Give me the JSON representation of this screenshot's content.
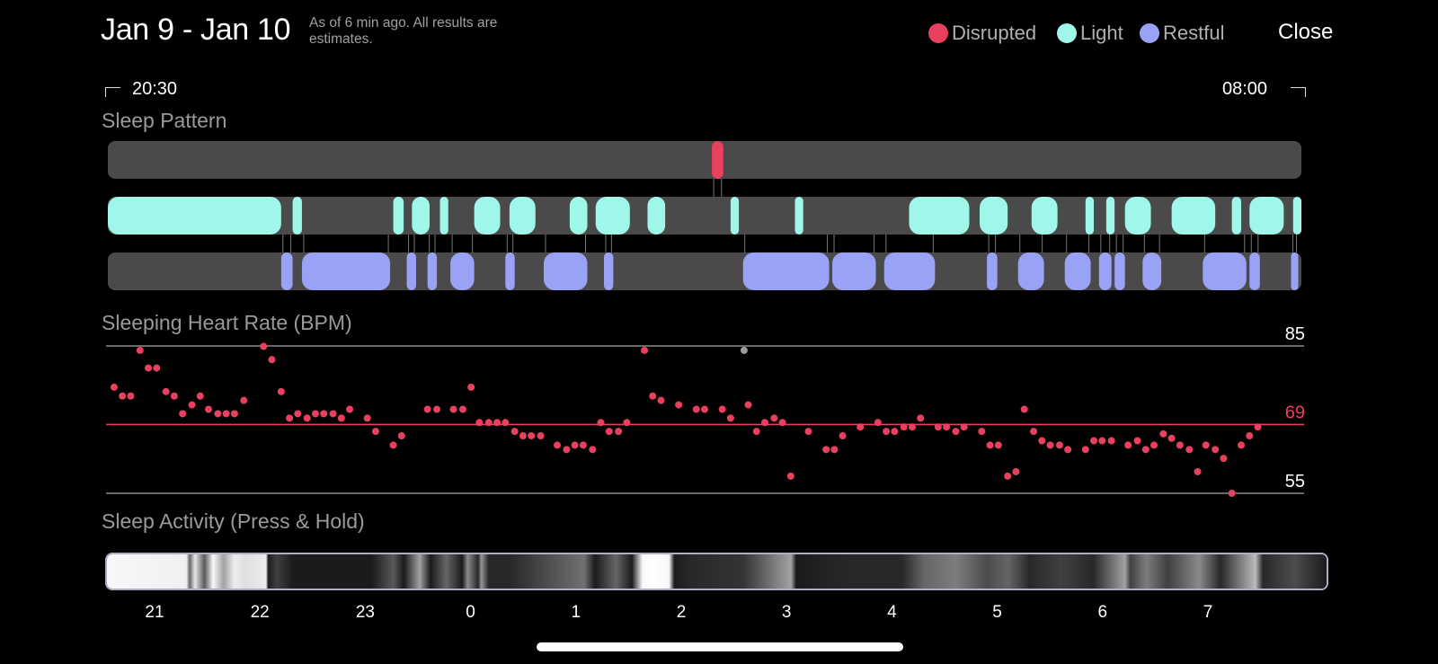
{
  "header": {
    "title": "Jan 9 - Jan 10",
    "subtitle": "As of 6 min ago. All results are estimates.",
    "close_label": "Close"
  },
  "legend": [
    {
      "label": "Disrupted",
      "color": "#e8405e"
    },
    {
      "label": "Light",
      "color": "#9ef7e9"
    },
    {
      "label": "Restful",
      "color": "#9aa2f6"
    }
  ],
  "time_range": {
    "start": "20:30",
    "end": "08:00"
  },
  "sleep_pattern": {
    "title": "Sleep Pattern",
    "time_axis_hours": [
      20.5,
      32.0
    ],
    "disrupted": [
      [
        26.32,
        26.43
      ]
    ],
    "light": [
      [
        20.5,
        22.17
      ],
      [
        22.28,
        22.37
      ],
      [
        23.25,
        23.35
      ],
      [
        23.43,
        23.6
      ],
      [
        23.7,
        23.78
      ],
      [
        24.03,
        24.28
      ],
      [
        24.37,
        24.62
      ],
      [
        24.95,
        25.12
      ],
      [
        25.2,
        25.53
      ],
      [
        25.7,
        25.87
      ],
      [
        26.5,
        26.58
      ],
      [
        27.12,
        27.2
      ],
      [
        28.22,
        28.8
      ],
      [
        28.9,
        29.17
      ],
      [
        29.4,
        29.65
      ],
      [
        29.92,
        30.0
      ],
      [
        30.12,
        30.2
      ],
      [
        30.3,
        30.55
      ],
      [
        30.75,
        31.17
      ],
      [
        31.33,
        31.42
      ],
      [
        31.5,
        31.83
      ],
      [
        31.92,
        32.0
      ]
    ],
    "restful": [
      [
        22.17,
        22.28
      ],
      [
        22.37,
        23.22
      ],
      [
        23.38,
        23.47
      ],
      [
        23.58,
        23.67
      ],
      [
        23.8,
        24.03
      ],
      [
        24.33,
        24.42
      ],
      [
        24.7,
        25.12
      ],
      [
        25.28,
        25.37
      ],
      [
        26.62,
        27.45
      ],
      [
        27.48,
        27.9
      ],
      [
        27.98,
        28.47
      ],
      [
        28.97,
        29.07
      ],
      [
        29.27,
        29.52
      ],
      [
        29.72,
        29.97
      ],
      [
        30.05,
        30.17
      ],
      [
        30.2,
        30.3
      ],
      [
        30.47,
        30.65
      ],
      [
        31.05,
        31.47
      ],
      [
        31.5,
        31.6
      ],
      [
        31.9,
        31.97
      ]
    ]
  },
  "chart_data": {
    "type": "scatter",
    "title": "Sleeping Heart Rate (BPM)",
    "xlabel": "",
    "ylabel": "BPM",
    "xlim": [
      20.5,
      32.0
    ],
    "ylim": [
      55,
      85
    ],
    "reference_lines": [
      {
        "value": 85,
        "label": "85",
        "color": "#8a8a8a"
      },
      {
        "value": 69,
        "label": "69",
        "color": "#e8405e"
      },
      {
        "value": 55,
        "label": "55",
        "color": "#8a8a8a"
      }
    ],
    "x_ticks": [
      21,
      22,
      23,
      0,
      1,
      2,
      3,
      4,
      5,
      6,
      7
    ],
    "series": [
      {
        "name": "Heart rate",
        "color": "#e8405e",
        "points": [
          [
            20.56,
            76.6
          ],
          [
            20.64,
            74.8
          ],
          [
            20.72,
            74.8
          ],
          [
            20.81,
            84.1
          ],
          [
            20.89,
            80.5
          ],
          [
            20.97,
            80.5
          ],
          [
            21.06,
            75.7
          ],
          [
            21.14,
            74.8
          ],
          [
            21.22,
            71.2
          ],
          [
            21.31,
            73.0
          ],
          [
            21.39,
            74.8
          ],
          [
            21.47,
            72.1
          ],
          [
            21.56,
            71.2
          ],
          [
            21.64,
            71.2
          ],
          [
            21.72,
            71.2
          ],
          [
            21.81,
            73.9
          ],
          [
            22.0,
            84.9
          ],
          [
            22.08,
            82.2
          ],
          [
            22.17,
            75.7
          ],
          [
            22.25,
            70.3
          ],
          [
            22.33,
            71.2
          ],
          [
            22.42,
            70.3
          ],
          [
            22.5,
            71.2
          ],
          [
            22.58,
            71.2
          ],
          [
            22.67,
            71.2
          ],
          [
            22.75,
            70.3
          ],
          [
            22.83,
            72.1
          ],
          [
            23.0,
            70.3
          ],
          [
            23.08,
            67.6
          ],
          [
            23.25,
            64.8
          ],
          [
            23.33,
            66.7
          ],
          [
            23.58,
            72.1
          ],
          [
            23.67,
            72.1
          ],
          [
            23.83,
            72.1
          ],
          [
            23.92,
            72.1
          ],
          [
            24.0,
            76.6
          ],
          [
            24.08,
            69.4
          ],
          [
            24.17,
            69.4
          ],
          [
            24.25,
            69.4
          ],
          [
            24.33,
            69.4
          ],
          [
            24.42,
            67.6
          ],
          [
            24.5,
            66.7
          ],
          [
            24.58,
            66.7
          ],
          [
            24.67,
            66.7
          ],
          [
            24.83,
            64.8
          ],
          [
            24.92,
            63.9
          ],
          [
            25.0,
            64.8
          ],
          [
            25.08,
            64.8
          ],
          [
            25.17,
            63.9
          ],
          [
            25.25,
            69.4
          ],
          [
            25.33,
            67.6
          ],
          [
            25.42,
            67.6
          ],
          [
            25.5,
            69.4
          ],
          [
            25.67,
            84.1
          ],
          [
            25.75,
            74.8
          ],
          [
            25.83,
            73.9
          ],
          [
            26.0,
            73.0
          ],
          [
            26.17,
            72.1
          ],
          [
            26.25,
            72.1
          ],
          [
            26.42,
            72.1
          ],
          [
            26.5,
            70.3
          ],
          [
            26.67,
            73.0
          ],
          [
            26.75,
            67.6
          ],
          [
            26.83,
            69.4
          ],
          [
            26.92,
            70.3
          ],
          [
            27.0,
            69.4
          ],
          [
            27.08,
            58.5
          ],
          [
            27.25,
            67.6
          ],
          [
            27.42,
            63.9
          ],
          [
            27.5,
            63.9
          ],
          [
            27.58,
            66.7
          ],
          [
            27.75,
            68.5
          ],
          [
            27.92,
            69.4
          ],
          [
            28.0,
            67.6
          ],
          [
            28.08,
            67.6
          ],
          [
            28.17,
            68.5
          ],
          [
            28.25,
            68.5
          ],
          [
            28.33,
            70.3
          ],
          [
            28.5,
            68.5
          ],
          [
            28.58,
            68.5
          ],
          [
            28.67,
            67.6
          ],
          [
            28.75,
            68.5
          ],
          [
            28.92,
            67.6
          ],
          [
            29.0,
            64.8
          ],
          [
            29.08,
            64.8
          ],
          [
            29.17,
            58.5
          ],
          [
            29.25,
            59.4
          ],
          [
            29.33,
            72.1
          ],
          [
            29.42,
            67.6
          ],
          [
            29.5,
            65.7
          ],
          [
            29.58,
            64.8
          ],
          [
            29.67,
            64.8
          ],
          [
            29.75,
            63.9
          ],
          [
            29.92,
            63.9
          ],
          [
            30.0,
            65.7
          ],
          [
            30.08,
            65.7
          ],
          [
            30.17,
            65.7
          ],
          [
            30.33,
            64.8
          ],
          [
            30.42,
            65.7
          ],
          [
            30.5,
            63.9
          ],
          [
            30.58,
            64.8
          ],
          [
            30.67,
            67.1
          ],
          [
            30.75,
            66.2
          ],
          [
            30.83,
            64.8
          ],
          [
            30.92,
            63.9
          ],
          [
            31.0,
            59.4
          ],
          [
            31.08,
            64.8
          ],
          [
            31.17,
            63.9
          ],
          [
            31.25,
            62.1
          ],
          [
            31.33,
            55.0
          ],
          [
            31.42,
            64.8
          ],
          [
            31.5,
            66.7
          ],
          [
            31.58,
            68.5
          ]
        ]
      },
      {
        "name": "Gray marker",
        "color": "#9a9a9a",
        "points": [
          [
            26.63,
            84.1
          ]
        ]
      }
    ]
  },
  "activity": {
    "title": "Sleep Activity (Press & Hold)",
    "levels": [
      [
        20.5,
        0.95
      ],
      [
        21.25,
        0.92
      ],
      [
        21.28,
        0.35
      ],
      [
        21.33,
        0.88
      ],
      [
        21.42,
        0.3
      ],
      [
        21.5,
        0.95
      ],
      [
        21.6,
        0.6
      ],
      [
        21.7,
        0.9
      ],
      [
        21.8,
        0.85
      ],
      [
        22.0,
        0.9
      ],
      [
        22.02,
        0.05
      ],
      [
        22.1,
        0.2
      ],
      [
        22.25,
        0.05
      ],
      [
        23.0,
        0.05
      ],
      [
        23.2,
        0.3
      ],
      [
        23.3,
        0.05
      ],
      [
        23.45,
        0.6
      ],
      [
        23.55,
        0.05
      ],
      [
        23.7,
        0.35
      ],
      [
        23.85,
        0.05
      ],
      [
        23.9,
        0.5
      ],
      [
        24.0,
        0.1
      ],
      [
        24.03,
        0.55
      ],
      [
        24.1,
        0.1
      ],
      [
        24.3,
        0.1
      ],
      [
        25.0,
        0.4
      ],
      [
        25.1,
        0.05
      ],
      [
        25.3,
        0.35
      ],
      [
        25.45,
        0.05
      ],
      [
        25.55,
        0.95
      ],
      [
        25.65,
        1.0
      ],
      [
        25.8,
        0.95
      ],
      [
        25.85,
        0.05
      ],
      [
        26.0,
        0.1
      ],
      [
        26.5,
        0.15
      ],
      [
        26.95,
        0.6
      ],
      [
        27.0,
        0.05
      ],
      [
        27.5,
        0.1
      ],
      [
        28.0,
        0.1
      ],
      [
        28.2,
        0.35
      ],
      [
        28.5,
        0.45
      ],
      [
        28.8,
        0.25
      ],
      [
        29.0,
        0.35
      ],
      [
        29.2,
        0.1
      ],
      [
        29.5,
        0.2
      ],
      [
        29.8,
        0.1
      ],
      [
        30.1,
        0.6
      ],
      [
        30.15,
        0.2
      ],
      [
        30.3,
        0.45
      ],
      [
        30.5,
        0.2
      ],
      [
        30.8,
        0.5
      ],
      [
        31.0,
        0.1
      ],
      [
        31.33,
        0.7
      ],
      [
        31.4,
        0.1
      ],
      [
        31.7,
        0.25
      ],
      [
        32.0,
        0.05
      ]
    ]
  }
}
